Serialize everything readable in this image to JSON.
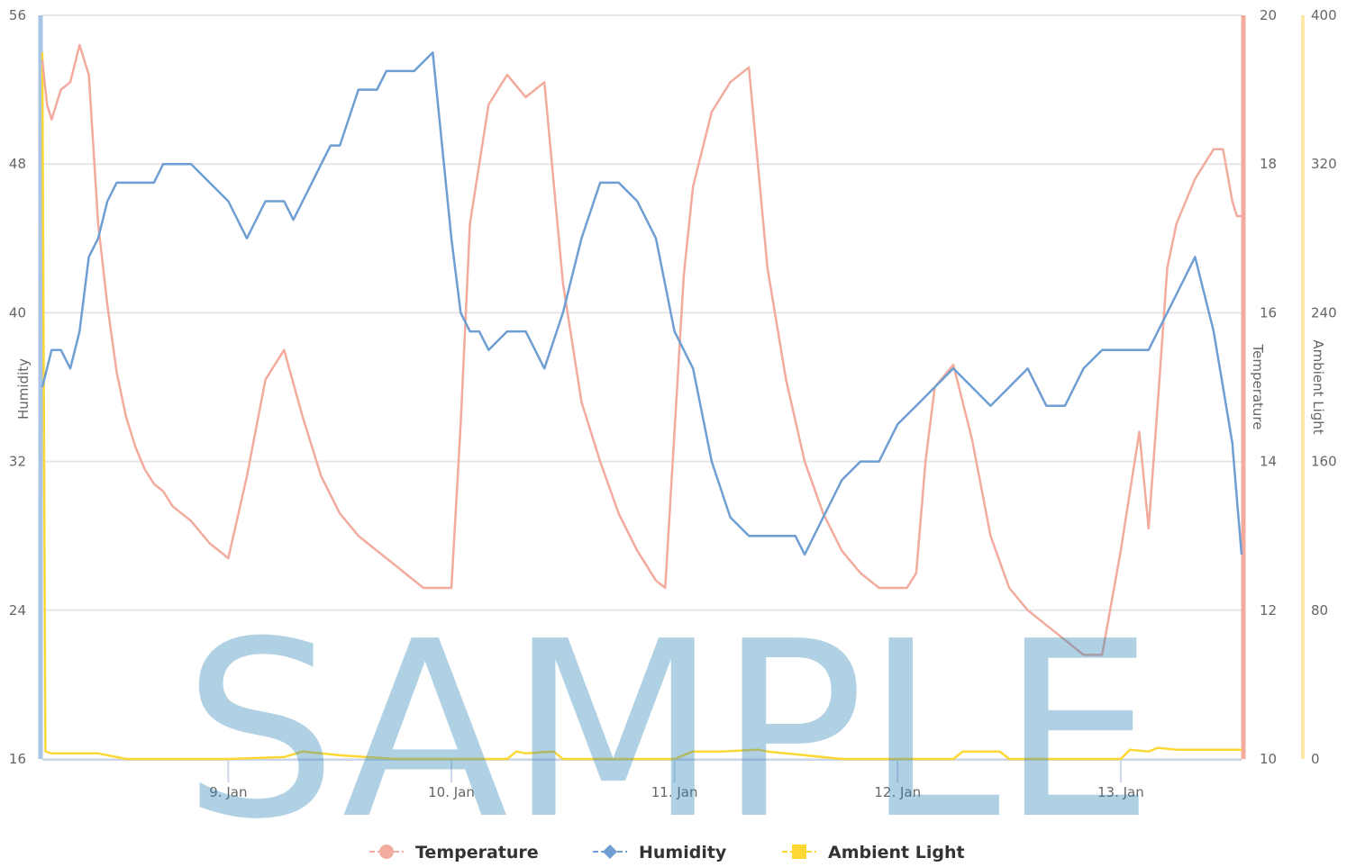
{
  "chart_data": {
    "type": "line",
    "title": "",
    "watermark": "SAMPLE",
    "x": {
      "type": "datetime",
      "range": [
        "2020-01-08 04:00",
        "2020-01-13 13:00"
      ],
      "tick_labels": [
        "9. Jan",
        "10. Jan",
        "11. Jan",
        "12. Jan",
        "13. Jan"
      ],
      "tick_dates": [
        "2020-01-09",
        "2020-01-10",
        "2020-01-11",
        "2020-01-12",
        "2020-01-13"
      ]
    },
    "axes": {
      "humidity": {
        "title": "Humidity",
        "min": 16,
        "max": 56,
        "ticks": [
          "16",
          "24",
          "32",
          "40",
          "48",
          "56"
        ],
        "color": "#a8c4e6"
      },
      "temperature": {
        "title": "Temperature",
        "min": 10,
        "max": 20,
        "ticks": [
          "10",
          "12",
          "14",
          "16",
          "18",
          "20"
        ],
        "color": "#f2ab9d"
      },
      "ambient": {
        "title": "Ambient Light",
        "min": 0,
        "max": 400,
        "ticks": [
          "0",
          "80",
          "160",
          "240",
          "320",
          "400"
        ],
        "color": "#fde7a2"
      }
    },
    "grid": true,
    "legend_position": "bottom-center",
    "series": [
      {
        "name": "Temperature",
        "axis": "temperature",
        "color": "#f2ab9d",
        "marker": "circle",
        "x": [
          "2020-01-08 04:00",
          "2020-01-08 04:30",
          "2020-01-08 05:00",
          "2020-01-08 06:00",
          "2020-01-08 07:00",
          "2020-01-08 08:00",
          "2020-01-08 09:00",
          "2020-01-08 10:00",
          "2020-01-08 11:00",
          "2020-01-08 12:00",
          "2020-01-08 13:00",
          "2020-01-08 14:00",
          "2020-01-08 15:00",
          "2020-01-08 16:00",
          "2020-01-08 17:00",
          "2020-01-08 18:00",
          "2020-01-08 20:00",
          "2020-01-08 22:00",
          "2020-01-09 00:00",
          "2020-01-09 02:00",
          "2020-01-09 04:00",
          "2020-01-09 06:00",
          "2020-01-09 08:00",
          "2020-01-09 10:00",
          "2020-01-09 12:00",
          "2020-01-09 14:00",
          "2020-01-09 15:00",
          "2020-01-09 16:00",
          "2020-01-09 17:00",
          "2020-01-09 18:00",
          "2020-01-09 19:00",
          "2020-01-09 20:00",
          "2020-01-09 21:00",
          "2020-01-09 22:00",
          "2020-01-09 23:00",
          "2020-01-10 00:00",
          "2020-01-10 01:00",
          "2020-01-10 02:00",
          "2020-01-10 04:00",
          "2020-01-10 06:00",
          "2020-01-10 08:00",
          "2020-01-10 10:00",
          "2020-01-10 12:00",
          "2020-01-10 14:00",
          "2020-01-10 16:00",
          "2020-01-10 18:00",
          "2020-01-10 20:00",
          "2020-01-10 22:00",
          "2020-01-10 23:00",
          "2020-01-11 00:00",
          "2020-01-11 01:00",
          "2020-01-11 02:00",
          "2020-01-11 03:00",
          "2020-01-11 04:00",
          "2020-01-11 06:00",
          "2020-01-11 08:00",
          "2020-01-11 10:00",
          "2020-01-11 12:00",
          "2020-01-11 14:00",
          "2020-01-11 16:00",
          "2020-01-11 18:00",
          "2020-01-11 20:00",
          "2020-01-11 22:00",
          "2020-01-11 23:00",
          "2020-01-12 00:00",
          "2020-01-12 01:00",
          "2020-01-12 02:00",
          "2020-01-12 03:00",
          "2020-01-12 04:00",
          "2020-01-12 06:00",
          "2020-01-12 08:00",
          "2020-01-12 10:00",
          "2020-01-12 12:00",
          "2020-01-12 14:00",
          "2020-01-12 16:00",
          "2020-01-12 18:00",
          "2020-01-12 20:00",
          "2020-01-12 22:00",
          "2020-01-13 00:00",
          "2020-01-13 02:00",
          "2020-01-13 03:00",
          "2020-01-13 04:00",
          "2020-01-13 05:00",
          "2020-01-13 06:00",
          "2020-01-13 08:00",
          "2020-01-13 10:00",
          "2020-01-13 11:00",
          "2020-01-13 12:00",
          "2020-01-13 12:30",
          "2020-01-13 13:00"
        ],
        "values": [
          19.4,
          18.8,
          18.6,
          19.0,
          19.1,
          19.6,
          19.2,
          17.2,
          16.1,
          15.2,
          14.6,
          14.2,
          13.9,
          13.7,
          13.6,
          13.4,
          13.2,
          12.9,
          12.7,
          13.8,
          15.1,
          15.5,
          14.6,
          13.8,
          13.3,
          13.0,
          12.9,
          12.8,
          12.7,
          12.6,
          12.5,
          12.4,
          12.3,
          12.3,
          12.3,
          12.3,
          14.5,
          17.2,
          18.8,
          19.2,
          18.9,
          19.1,
          16.4,
          14.8,
          14.0,
          13.3,
          12.8,
          12.4,
          12.3,
          14.4,
          16.5,
          17.7,
          18.2,
          18.7,
          19.1,
          19.3,
          16.6,
          15.1,
          14.0,
          13.3,
          12.8,
          12.5,
          12.3,
          12.3,
          12.3,
          12.3,
          12.5,
          14.0,
          15.0,
          15.3,
          14.3,
          13.0,
          12.3,
          12.0,
          11.8,
          11.6,
          11.4,
          11.4,
          12.8,
          14.4,
          13.1,
          14.8,
          16.6,
          17.2,
          17.8,
          18.2,
          18.2,
          17.5,
          17.3,
          17.3
        ]
      },
      {
        "name": "Humidity",
        "axis": "humidity",
        "color": "#6f9ed3",
        "marker": "diamond",
        "x": [
          "2020-01-08 04:00",
          "2020-01-08 05:00",
          "2020-01-08 06:00",
          "2020-01-08 07:00",
          "2020-01-08 08:00",
          "2020-01-08 09:00",
          "2020-01-08 10:00",
          "2020-01-08 11:00",
          "2020-01-08 12:00",
          "2020-01-08 13:00",
          "2020-01-08 14:00",
          "2020-01-08 15:00",
          "2020-01-08 16:00",
          "2020-01-08 17:00",
          "2020-01-08 18:00",
          "2020-01-08 20:00",
          "2020-01-08 22:00",
          "2020-01-09 00:00",
          "2020-01-09 02:00",
          "2020-01-09 04:00",
          "2020-01-09 06:00",
          "2020-01-09 07:00",
          "2020-01-09 08:00",
          "2020-01-09 09:00",
          "2020-01-09 10:00",
          "2020-01-09 11:00",
          "2020-01-09 12:00",
          "2020-01-09 14:00",
          "2020-01-09 16:00",
          "2020-01-09 17:00",
          "2020-01-09 18:00",
          "2020-01-09 20:00",
          "2020-01-09 22:00",
          "2020-01-10 00:00",
          "2020-01-10 01:00",
          "2020-01-10 02:00",
          "2020-01-10 03:00",
          "2020-01-10 04:00",
          "2020-01-10 06:00",
          "2020-01-10 08:00",
          "2020-01-10 10:00",
          "2020-01-10 12:00",
          "2020-01-10 14:00",
          "2020-01-10 16:00",
          "2020-01-10 18:00",
          "2020-01-10 20:00",
          "2020-01-10 22:00",
          "2020-01-11 00:00",
          "2020-01-11 02:00",
          "2020-01-11 04:00",
          "2020-01-11 06:00",
          "2020-01-11 08:00",
          "2020-01-11 10:00",
          "2020-01-11 12:00",
          "2020-01-11 13:00",
          "2020-01-11 14:00",
          "2020-01-11 16:00",
          "2020-01-11 18:00",
          "2020-01-11 20:00",
          "2020-01-11 22:00",
          "2020-01-12 00:00",
          "2020-01-12 02:00",
          "2020-01-12 04:00",
          "2020-01-12 06:00",
          "2020-01-12 08:00",
          "2020-01-12 10:00",
          "2020-01-12 12:00",
          "2020-01-12 14:00",
          "2020-01-12 16:00",
          "2020-01-12 18:00",
          "2020-01-12 20:00",
          "2020-01-12 22:00",
          "2020-01-13 00:00",
          "2020-01-13 02:00",
          "2020-01-13 03:00",
          "2020-01-13 04:00",
          "2020-01-13 06:00",
          "2020-01-13 08:00",
          "2020-01-13 10:00",
          "2020-01-13 11:00",
          "2020-01-13 12:00",
          "2020-01-13 12:30",
          "2020-01-13 13:00"
        ],
        "values": [
          36,
          38,
          38,
          37,
          39,
          43,
          44,
          46,
          47,
          47,
          47,
          47,
          47,
          48,
          48,
          48,
          47,
          46,
          44,
          46,
          46,
          45,
          46,
          47,
          48,
          49,
          49,
          52,
          52,
          53,
          53,
          53,
          54,
          44,
          40,
          39,
          39,
          38,
          39,
          39,
          37,
          40,
          44,
          47,
          47,
          46,
          44,
          39,
          37,
          32,
          29,
          28,
          28,
          28,
          28,
          27,
          29,
          31,
          32,
          32,
          34,
          35,
          36,
          37,
          36,
          35,
          36,
          37,
          35,
          35,
          37,
          38,
          38,
          38,
          38,
          39,
          41,
          43,
          39,
          36,
          33,
          30,
          27
        ]
      },
      {
        "name": "Ambient Light",
        "axis": "ambient",
        "color": "#fdd835",
        "marker": "square",
        "x": [
          "2020-01-08 04:00",
          "2020-01-08 04:20",
          "2020-01-08 05:00",
          "2020-01-08 10:00",
          "2020-01-08 13:00",
          "2020-01-08 15:00",
          "2020-01-09 00:00",
          "2020-01-09 06:00",
          "2020-01-09 08:00",
          "2020-01-09 10:00",
          "2020-01-09 12:00",
          "2020-01-09 18:00",
          "2020-01-10 06:00",
          "2020-01-10 07:00",
          "2020-01-10 08:00",
          "2020-01-10 11:00",
          "2020-01-10 12:00",
          "2020-01-10 18:00",
          "2020-01-11 00:00",
          "2020-01-11 02:00",
          "2020-01-11 05:00",
          "2020-01-11 09:00",
          "2020-01-11 10:00",
          "2020-01-11 18:00",
          "2020-01-12 06:00",
          "2020-01-12 07:00",
          "2020-01-12 08:00",
          "2020-01-12 11:00",
          "2020-01-12 12:00",
          "2020-01-12 18:00",
          "2020-01-13 00:00",
          "2020-01-13 01:00",
          "2020-01-13 03:00",
          "2020-01-13 04:00",
          "2020-01-13 06:00",
          "2020-01-13 12:00",
          "2020-01-13 13:00"
        ],
        "values": [
          380,
          4,
          3,
          3,
          0,
          0,
          0,
          1,
          4,
          3,
          2,
          0,
          0,
          4,
          3,
          4,
          0,
          0,
          0,
          4,
          4,
          5,
          4,
          0,
          0,
          4,
          4,
          4,
          0,
          0,
          0,
          5,
          4,
          6,
          5,
          5,
          5
        ]
      }
    ]
  }
}
